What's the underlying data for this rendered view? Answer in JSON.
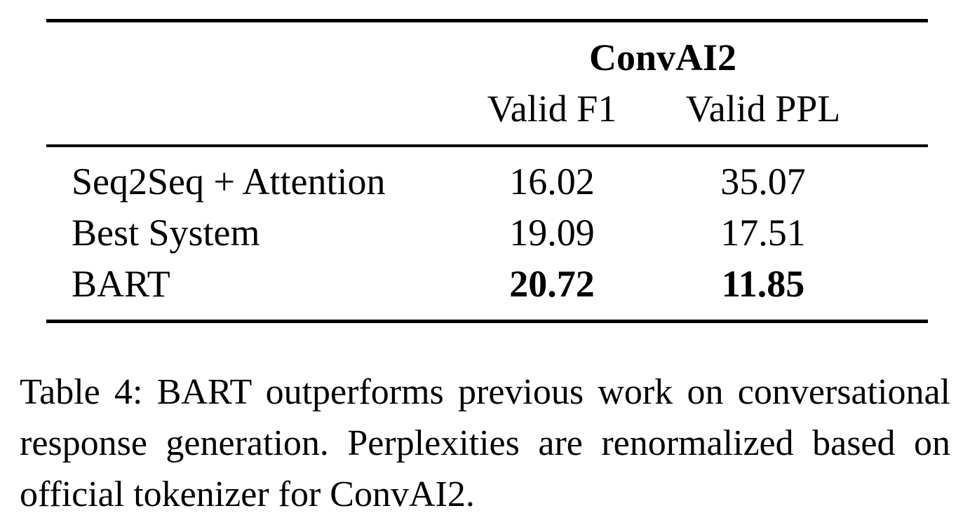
{
  "table": {
    "group_header": "ConvAI2",
    "columns": [
      "Valid F1",
      "Valid PPL"
    ],
    "rows": [
      {
        "label": "Seq2Seq + Attention",
        "f1": "16.02",
        "ppl": "35.07"
      },
      {
        "label": "Best System",
        "f1": "19.09",
        "ppl": "17.51"
      },
      {
        "label": "BART",
        "f1": "20.72",
        "ppl": "11.85"
      }
    ]
  },
  "caption": "Table 4: BART outperforms previous work on conver­sational response generation.  Perplexities are renor­malized based on official tokenizer for ConvAI2."
}
